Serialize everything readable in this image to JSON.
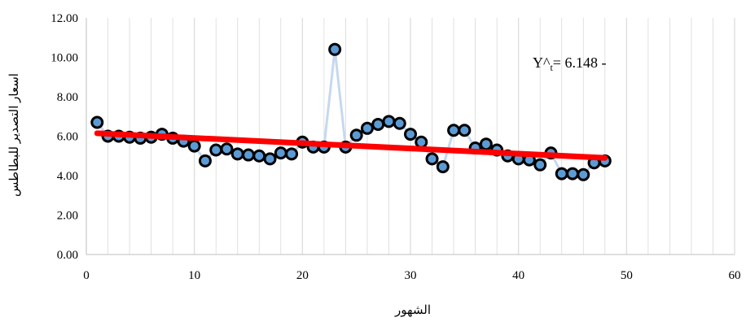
{
  "chart_data": {
    "type": "scatter",
    "title": "",
    "xlabel": "الشهور",
    "ylabel": "اسعار التصدير للبطاطس",
    "xlim": [
      0,
      60
    ],
    "ylim": [
      0,
      12
    ],
    "x_ticks": [
      "0",
      "10",
      "20",
      "30",
      "40",
      "50",
      "60"
    ],
    "y_ticks": [
      "0.00",
      "2.00",
      "4.00",
      "6.00",
      "8.00",
      "10.00",
      "12.00"
    ],
    "grid": "vertical",
    "annotation": {
      "prefix": "Y^",
      "sub": "t",
      "suffix": "= 6.148 -"
    },
    "series": [
      {
        "kind": "observed",
        "x": [
          1,
          2,
          3,
          4,
          5,
          6,
          7,
          8,
          9,
          10,
          11,
          12,
          13,
          14,
          15,
          16,
          17,
          18,
          19,
          20,
          21,
          22,
          23,
          24,
          25,
          26,
          27,
          28,
          29,
          30,
          31,
          32,
          33,
          34,
          35,
          36,
          37,
          38,
          39,
          40,
          41,
          42,
          43,
          44,
          45,
          46,
          47,
          48
        ],
        "values": [
          6.7,
          6.0,
          6.0,
          5.95,
          5.9,
          5.95,
          6.1,
          5.9,
          5.75,
          5.5,
          4.75,
          5.3,
          5.35,
          5.1,
          5.05,
          5.0,
          4.85,
          5.15,
          5.1,
          5.7,
          5.45,
          5.45,
          10.4,
          5.45,
          6.05,
          6.4,
          6.6,
          6.75,
          6.65,
          6.1,
          5.7,
          4.85,
          4.45,
          6.3,
          6.3,
          5.4,
          5.6,
          5.3,
          5.0,
          4.85,
          4.8,
          4.55,
          5.15,
          4.1,
          4.1,
          4.05,
          4.65,
          4.75
        ],
        "color": "#5b9bd5"
      },
      {
        "kind": "trend",
        "x": [
          1,
          48
        ],
        "values": [
          6.15,
          4.9
        ],
        "color": "#ff0000"
      }
    ],
    "colors": {
      "marker_fill": "#5b9bd5",
      "marker_edge": "#000000",
      "connector": "#c6d8ef",
      "trend": "#ff0000",
      "grid": "#d9d9d9",
      "axis": "#bfbfbf"
    }
  }
}
